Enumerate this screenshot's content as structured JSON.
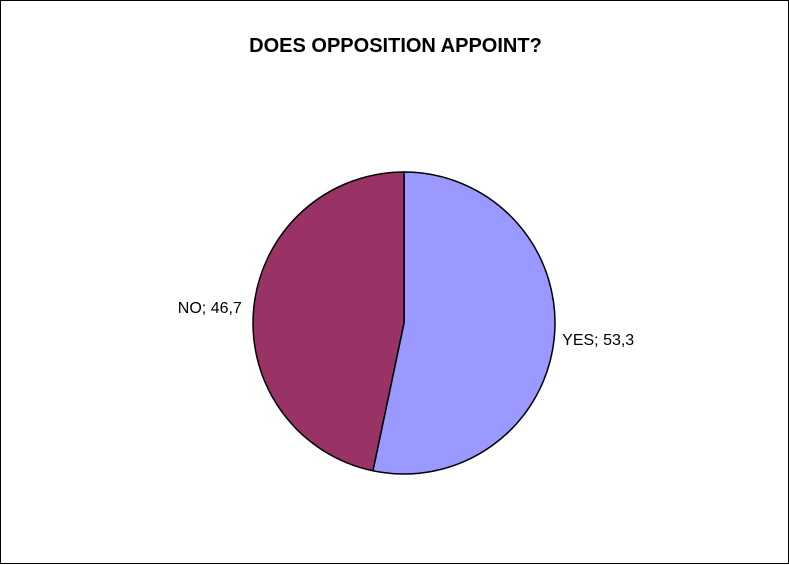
{
  "chart_data": {
    "type": "pie",
    "title": "DOES OPPOSITION APPOINT?",
    "slices": [
      {
        "label": "YES",
        "value": 53.3,
        "display": "YES; 53,3",
        "color": "#9999ff"
      },
      {
        "label": "NO",
        "value": 46.7,
        "display": "NO; 46,7",
        "color": "#993366"
      }
    ],
    "start_angle_deg": 0,
    "direction": "clockwise",
    "outline_color": "#000000"
  }
}
